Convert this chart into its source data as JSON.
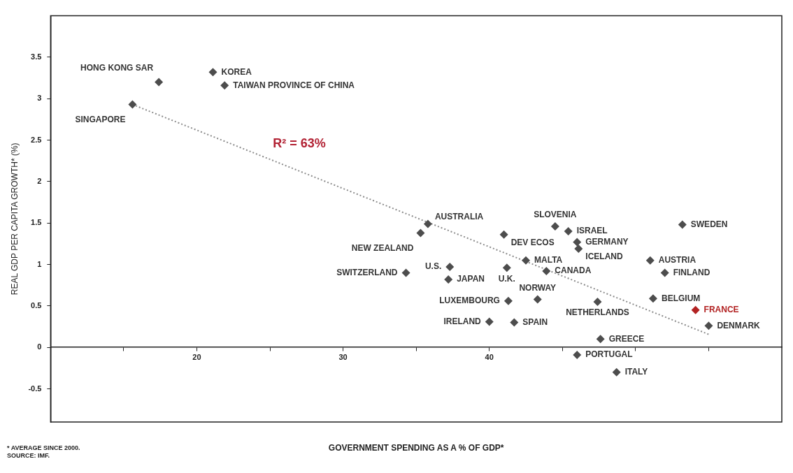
{
  "chart_data": {
    "type": "scatter",
    "xlabel": "GOVERNMENT SPENDING AS A % OF GDP*",
    "ylabel": "REAL GDP PER CAPITA GROWTH* (%)",
    "xlim": [
      10,
      60
    ],
    "xticks": [
      {
        "value": 15,
        "label": null
      },
      20,
      {
        "value": 25,
        "label": null
      },
      30,
      {
        "value": 35,
        "label": null
      },
      40,
      {
        "value": 45,
        "label": null
      },
      {
        "value": 50,
        "label": null
      },
      {
        "value": 55,
        "label": null
      }
    ],
    "ylim": [
      -0.9,
      4
    ],
    "yticks": [
      -0.5,
      0,
      0.5,
      1,
      1.5,
      2,
      2.5,
      3,
      3.5
    ],
    "grid": false,
    "legend": false,
    "marker": "diamond",
    "series": [
      {
        "type": "scatter",
        "color": "#4d4d4d",
        "x": [
          15.6,
          17.4,
          21.1,
          21.9,
          35.8,
          35.3,
          41.0,
          44.5,
          45.4,
          46.0,
          46.1,
          53.2,
          42.5,
          51.0,
          37.3,
          41.2,
          43.9,
          34.3,
          52.0,
          37.2,
          51.2,
          43.3,
          41.3,
          47.4,
          40.0,
          41.7,
          55.0,
          47.6,
          46.0,
          48.7
        ],
        "values": [
          2.93,
          3.2,
          3.32,
          3.16,
          1.49,
          1.38,
          1.36,
          1.46,
          1.4,
          1.27,
          1.19,
          1.48,
          1.05,
          1.05,
          0.97,
          0.96,
          0.92,
          0.9,
          0.9,
          0.82,
          0.59,
          0.58,
          0.56,
          0.55,
          0.31,
          0.3,
          0.26,
          0.1,
          -0.09,
          -0.3
        ]
      },
      {
        "type": "scatter",
        "color": "#b22222",
        "x": [
          54.1
        ],
        "values": [
          0.45
        ]
      },
      {
        "type": "line",
        "color": "#8c8c8c",
        "line_style": "dotted",
        "marker": "none",
        "x": [
          15.6,
          55.1
        ],
        "values": [
          2.93,
          0.15
        ]
      }
    ],
    "annotations": [
      {
        "text": "SINGAPORE",
        "x": 15.6,
        "y": 2.93
      },
      {
        "text": "HONG KONG SAR",
        "x": 17.4,
        "y": 3.2
      },
      {
        "text": "KOREA",
        "x": 21.1,
        "y": 3.32
      },
      {
        "text": "TAIWAN PROVINCE OF CHINA",
        "x": 21.9,
        "y": 3.16
      },
      {
        "text": "AUSTRALIA",
        "x": 35.8,
        "y": 1.49
      },
      {
        "text": "NEW ZEALAND",
        "x": 35.3,
        "y": 1.38
      },
      {
        "text": "DEV ECOS",
        "x": 41.0,
        "y": 1.36
      },
      {
        "text": "SLOVENIA",
        "x": 44.5,
        "y": 1.46
      },
      {
        "text": "ISRAEL",
        "x": 45.4,
        "y": 1.4
      },
      {
        "text": "GERMANY",
        "x": 46.0,
        "y": 1.27
      },
      {
        "text": "ICELAND",
        "x": 46.1,
        "y": 1.19
      },
      {
        "text": "SWEDEN",
        "x": 53.2,
        "y": 1.48
      },
      {
        "text": "MALTA",
        "x": 42.5,
        "y": 1.05
      },
      {
        "text": "AUSTRIA",
        "x": 51.0,
        "y": 1.05
      },
      {
        "text": "U.S.",
        "x": 37.3,
        "y": 0.97
      },
      {
        "text": "U.K.",
        "x": 41.2,
        "y": 0.96
      },
      {
        "text": "CANADA",
        "x": 43.9,
        "y": 0.92
      },
      {
        "text": "SWITZERLAND",
        "x": 34.3,
        "y": 0.9
      },
      {
        "text": "FINLAND",
        "x": 52.0,
        "y": 0.9
      },
      {
        "text": "JAPAN",
        "x": 37.2,
        "y": 0.82
      },
      {
        "text": "BELGIUM",
        "x": 51.2,
        "y": 0.59
      },
      {
        "text": "NORWAY",
        "x": 43.3,
        "y": 0.58
      },
      {
        "text": "LUXEMBOURG",
        "x": 41.3,
        "y": 0.56
      },
      {
        "text": "NETHERLANDS",
        "x": 47.4,
        "y": 0.55
      },
      {
        "text": "FRANCE",
        "x": 54.1,
        "y": 0.45
      },
      {
        "text": "IRELAND",
        "x": 40.0,
        "y": 0.31
      },
      {
        "text": "SPAIN",
        "x": 41.7,
        "y": 0.3
      },
      {
        "text": "DENMARK",
        "x": 55.0,
        "y": 0.26
      },
      {
        "text": "GREECE",
        "x": 47.6,
        "y": 0.1
      },
      {
        "text": "PORTUGAL",
        "x": 46.0,
        "y": -0.09
      },
      {
        "text": "ITALY",
        "x": 48.7,
        "y": -0.3
      },
      "R² = 63%",
      "* AVERAGE SINCE 2000.",
      "SOURCE: IMF."
    ]
  }
}
